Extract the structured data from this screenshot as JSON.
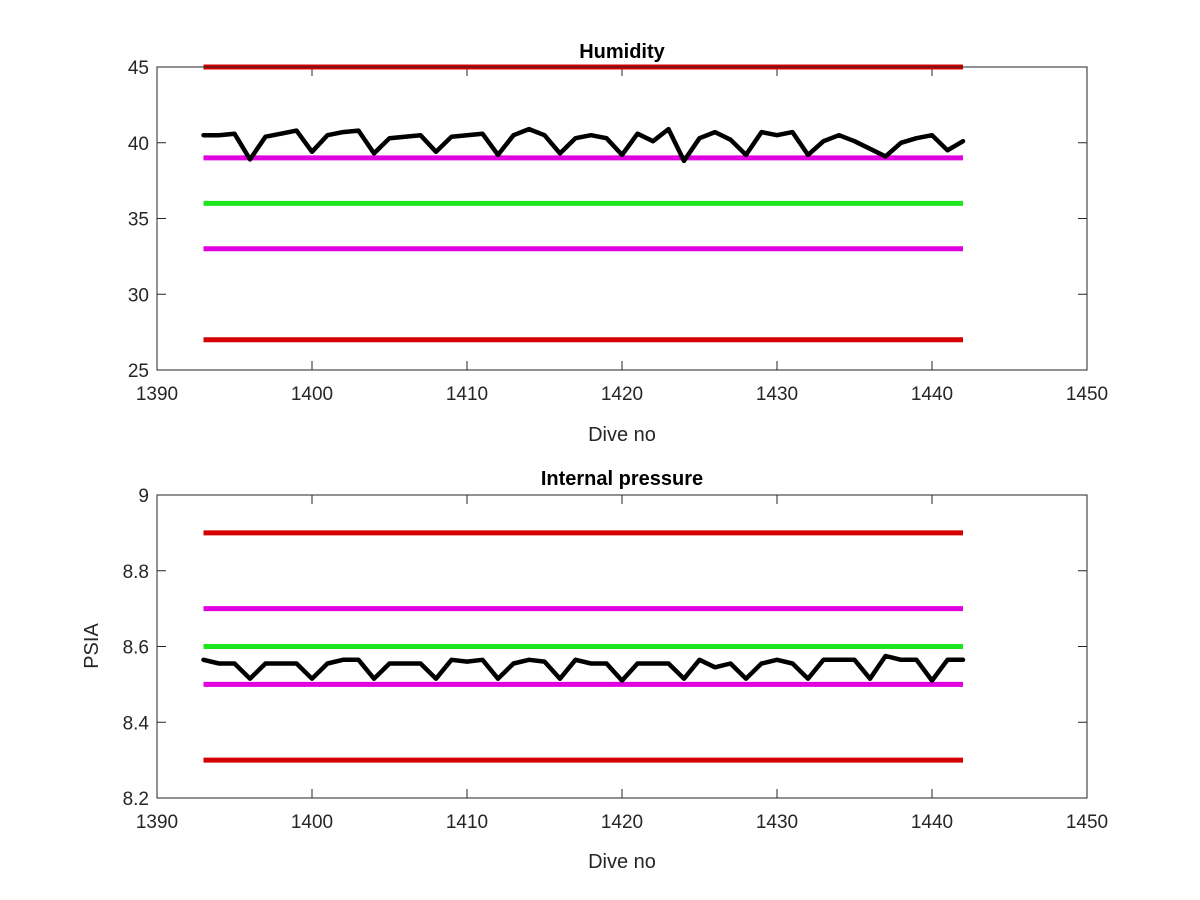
{
  "chart_data": [
    {
      "type": "line",
      "title": "Humidity",
      "xlabel": "Dive no",
      "ylabel": "",
      "xlim": [
        1390,
        1450
      ],
      "ylim": [
        25,
        45
      ],
      "xticks": [
        1390,
        1400,
        1410,
        1420,
        1430,
        1440,
        1450
      ],
      "yticks": [
        25,
        30,
        35,
        40,
        45
      ],
      "grid": false,
      "reference_lines": [
        {
          "y": 45,
          "x": [
            1393,
            1442
          ],
          "color": "#d40000"
        },
        {
          "y": 39,
          "x": [
            1393,
            1442
          ],
          "color": "#e000e0"
        },
        {
          "y": 36,
          "x": [
            1393,
            1442
          ],
          "color": "#1ee61e"
        },
        {
          "y": 33,
          "x": [
            1393,
            1442
          ],
          "color": "#e000e0"
        },
        {
          "y": 27,
          "x": [
            1393,
            1442
          ],
          "color": "#d40000"
        }
      ],
      "series": [
        {
          "color": "#000000",
          "x": [
            1393,
            1394,
            1395,
            1396,
            1397,
            1398,
            1399,
            1400,
            1401,
            1402,
            1403,
            1404,
            1405,
            1406,
            1407,
            1408,
            1409,
            1410,
            1411,
            1412,
            1413,
            1414,
            1415,
            1416,
            1417,
            1418,
            1419,
            1420,
            1421,
            1422,
            1423,
            1424,
            1425,
            1426,
            1427,
            1428,
            1429,
            1430,
            1431,
            1432,
            1433,
            1434,
            1435,
            1436,
            1437,
            1438,
            1439,
            1440,
            1441,
            1442
          ],
          "values": [
            40.5,
            40.5,
            40.6,
            38.9,
            40.4,
            40.6,
            40.8,
            39.4,
            40.5,
            40.7,
            40.8,
            39.3,
            40.3,
            40.4,
            40.5,
            39.4,
            40.4,
            40.5,
            40.6,
            39.2,
            40.5,
            40.9,
            40.5,
            39.3,
            40.3,
            40.5,
            40.3,
            39.2,
            40.6,
            40.1,
            40.9,
            38.8,
            40.3,
            40.7,
            40.2,
            39.2,
            40.7,
            40.5,
            40.7,
            39.2,
            40.1,
            40.5,
            40.1,
            39.6,
            39.1,
            40.0,
            40.3,
            40.5,
            39.5,
            40.1
          ]
        }
      ]
    },
    {
      "type": "line",
      "title": "Internal pressure",
      "xlabel": "Dive no",
      "ylabel": "PSIA",
      "xlim": [
        1390,
        1450
      ],
      "ylim": [
        8.2,
        9
      ],
      "xticks": [
        1390,
        1400,
        1410,
        1420,
        1430,
        1440,
        1450
      ],
      "yticks": [
        8.2,
        8.4,
        8.6,
        8.8,
        9
      ],
      "grid": false,
      "reference_lines": [
        {
          "y": 8.9,
          "x": [
            1393,
            1442
          ],
          "color": "#d40000"
        },
        {
          "y": 8.7,
          "x": [
            1393,
            1442
          ],
          "color": "#e000e0"
        },
        {
          "y": 8.6,
          "x": [
            1393,
            1442
          ],
          "color": "#1ee61e"
        },
        {
          "y": 8.5,
          "x": [
            1393,
            1442
          ],
          "color": "#e000e0"
        },
        {
          "y": 8.3,
          "x": [
            1393,
            1442
          ],
          "color": "#d40000"
        }
      ],
      "series": [
        {
          "color": "#000000",
          "x": [
            1393,
            1394,
            1395,
            1396,
            1397,
            1398,
            1399,
            1400,
            1401,
            1402,
            1403,
            1404,
            1405,
            1406,
            1407,
            1408,
            1409,
            1410,
            1411,
            1412,
            1413,
            1414,
            1415,
            1416,
            1417,
            1418,
            1419,
            1420,
            1421,
            1422,
            1423,
            1424,
            1425,
            1426,
            1427,
            1428,
            1429,
            1430,
            1431,
            1432,
            1433,
            1434,
            1435,
            1436,
            1437,
            1438,
            1439,
            1440,
            1441,
            1442
          ],
          "values": [
            8.565,
            8.555,
            8.555,
            8.515,
            8.555,
            8.555,
            8.555,
            8.515,
            8.555,
            8.565,
            8.565,
            8.515,
            8.555,
            8.555,
            8.555,
            8.515,
            8.565,
            8.56,
            8.565,
            8.515,
            8.555,
            8.565,
            8.56,
            8.515,
            8.565,
            8.555,
            8.555,
            8.51,
            8.555,
            8.555,
            8.555,
            8.515,
            8.565,
            8.545,
            8.555,
            8.515,
            8.555,
            8.565,
            8.555,
            8.515,
            8.565,
            8.565,
            8.565,
            8.515,
            8.575,
            8.565,
            8.565,
            8.51,
            8.565,
            8.565
          ]
        }
      ]
    }
  ]
}
